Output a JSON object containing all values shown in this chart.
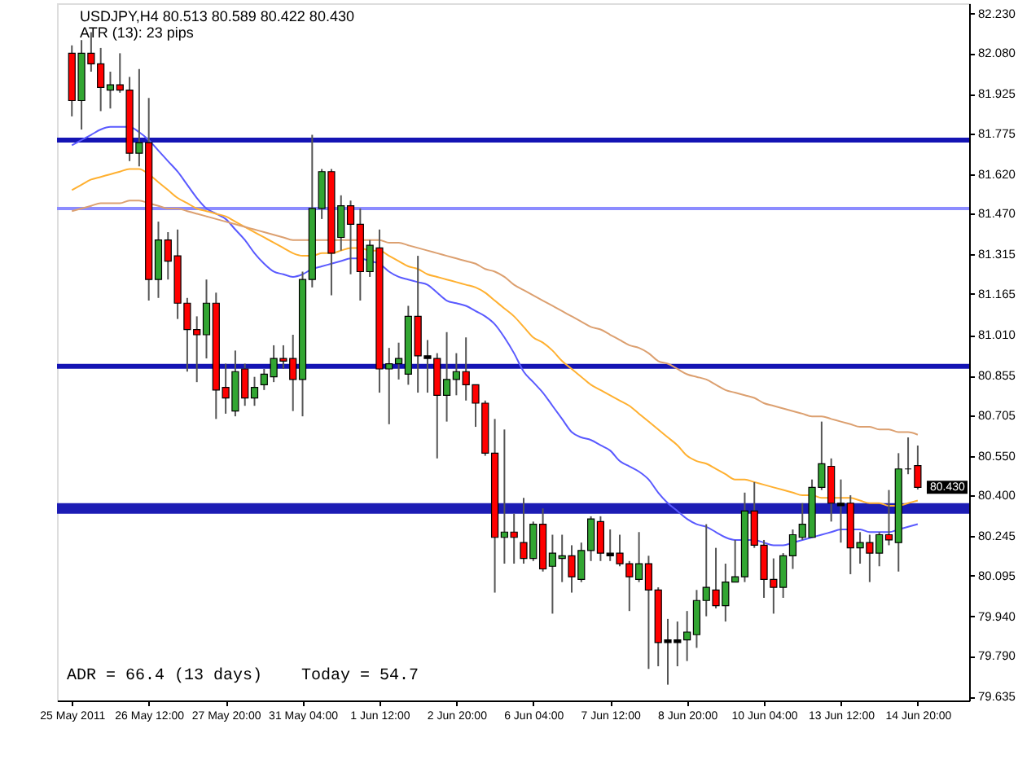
{
  "chart_data": {
    "type": "candlestick",
    "categories": [
      "25 May 2011",
      null,
      null,
      null,
      null,
      null,
      null,
      null,
      "26 May 12:00",
      null,
      null,
      null,
      null,
      null,
      null,
      null,
      "27 May 20:00",
      null,
      null,
      null,
      null,
      null,
      null,
      null,
      "31 May 04:00",
      null,
      null,
      null,
      null,
      null,
      null,
      null,
      "1 Jun 12:00",
      null,
      null,
      null,
      null,
      null,
      null,
      null,
      "2 Jun 20:00",
      null,
      null,
      null,
      null,
      null,
      null,
      null,
      "6 Jun 04:00",
      null,
      null,
      null,
      null,
      null,
      null,
      null,
      "7 Jun 12:00",
      null,
      null,
      null,
      null,
      null,
      null,
      null,
      "8 Jun 20:00",
      null,
      null,
      null,
      null,
      null,
      null,
      null,
      "10 Jun 04:00",
      null,
      null,
      null,
      null,
      null,
      null,
      null,
      "13 Jun 12:00",
      null,
      null,
      null,
      null,
      null,
      null,
      null,
      "14 Jun 20:00"
    ],
    "ohlc": [
      [
        82.08,
        82.11,
        81.84,
        81.9
      ],
      [
        81.9,
        82.13,
        81.79,
        82.08
      ],
      [
        82.08,
        82.16,
        82.01,
        82.04
      ],
      [
        82.04,
        82.1,
        81.86,
        81.95
      ],
      [
        81.94,
        82.01,
        81.87,
        81.96
      ],
      [
        81.96,
        82.08,
        81.93,
        81.94
      ],
      [
        81.94,
        81.99,
        81.67,
        81.7
      ],
      [
        81.7,
        82.02,
        81.65,
        81.74
      ],
      [
        81.74,
        81.91,
        81.14,
        81.22
      ],
      [
        81.22,
        81.44,
        81.15,
        81.37
      ],
      [
        81.37,
        81.4,
        81.22,
        81.29
      ],
      [
        81.31,
        81.41,
        81.07,
        81.13
      ],
      [
        81.13,
        81.15,
        80.87,
        81.03
      ],
      [
        81.03,
        81.08,
        80.83,
        81.01
      ],
      [
        81.01,
        81.22,
        80.92,
        81.13
      ],
      [
        81.13,
        81.17,
        80.69,
        80.8
      ],
      [
        80.81,
        80.9,
        80.71,
        80.77
      ],
      [
        80.72,
        80.95,
        80.7,
        80.87
      ],
      [
        80.88,
        80.9,
        80.74,
        80.77
      ],
      [
        80.77,
        80.85,
        80.74,
        80.81
      ],
      [
        80.82,
        80.88,
        80.8,
        80.86
      ],
      [
        80.85,
        80.97,
        80.83,
        80.92
      ],
      [
        80.92,
        80.97,
        80.88,
        80.91
      ],
      [
        80.92,
        81.01,
        80.72,
        80.84
      ],
      [
        80.84,
        81.25,
        80.7,
        81.22
      ],
      [
        81.22,
        81.77,
        81.19,
        81.49
      ],
      [
        81.49,
        81.64,
        81.45,
        81.63
      ],
      [
        81.63,
        81.64,
        81.16,
        81.32
      ],
      [
        81.38,
        81.54,
        81.33,
        81.5
      ],
      [
        81.5,
        81.52,
        81.24,
        81.43
      ],
      [
        81.43,
        81.49,
        81.14,
        81.25
      ],
      [
        81.25,
        81.37,
        81.23,
        81.35
      ],
      [
        81.34,
        81.41,
        80.79,
        80.88
      ],
      [
        80.88,
        80.96,
        80.67,
        80.9
      ],
      [
        80.9,
        80.98,
        80.84,
        80.92
      ],
      [
        80.86,
        81.12,
        80.82,
        81.08
      ],
      [
        81.08,
        81.31,
        80.79,
        80.93
      ],
      [
        80.93,
        80.99,
        80.79,
        80.92
      ],
      [
        80.92,
        80.94,
        80.54,
        80.78
      ],
      [
        80.78,
        81.02,
        80.68,
        80.84
      ],
      [
        80.84,
        80.94,
        80.78,
        80.87
      ],
      [
        80.87,
        81.0,
        80.76,
        80.82
      ],
      [
        80.82,
        80.82,
        80.66,
        80.75
      ],
      [
        80.75,
        80.76,
        80.55,
        80.56
      ],
      [
        80.56,
        80.69,
        80.03,
        80.24
      ],
      [
        80.24,
        80.65,
        80.14,
        80.26
      ],
      [
        80.26,
        80.33,
        80.14,
        80.24
      ],
      [
        80.22,
        80.39,
        80.14,
        80.16
      ],
      [
        80.16,
        80.3,
        80.15,
        80.29
      ],
      [
        80.29,
        80.35,
        80.11,
        80.12
      ],
      [
        80.13,
        80.25,
        79.95,
        80.18
      ],
      [
        80.16,
        80.25,
        80.07,
        80.17
      ],
      [
        80.17,
        80.21,
        80.03,
        80.09
      ],
      [
        80.08,
        80.22,
        80.07,
        80.19
      ],
      [
        80.19,
        80.32,
        80.15,
        80.31
      ],
      [
        80.3,
        80.32,
        80.15,
        80.18
      ],
      [
        80.18,
        80.27,
        80.15,
        80.17
      ],
      [
        80.18,
        80.25,
        80.13,
        80.14
      ],
      [
        80.14,
        80.15,
        79.96,
        80.09
      ],
      [
        80.08,
        80.26,
        80.07,
        80.14
      ],
      [
        80.14,
        80.17,
        79.74,
        80.04
      ],
      [
        80.04,
        80.05,
        79.75,
        79.84
      ],
      [
        79.85,
        79.93,
        79.68,
        79.84
      ],
      [
        79.84,
        79.92,
        79.75,
        79.85
      ],
      [
        79.85,
        79.96,
        79.77,
        79.88
      ],
      [
        79.87,
        80.04,
        79.82,
        80.0
      ],
      [
        80.0,
        80.29,
        79.94,
        80.05
      ],
      [
        80.04,
        80.2,
        79.97,
        79.98
      ],
      [
        79.98,
        80.14,
        79.92,
        80.07
      ],
      [
        80.07,
        80.23,
        80.07,
        80.09
      ],
      [
        80.09,
        80.41,
        80.07,
        80.34
      ],
      [
        80.34,
        80.45,
        80.2,
        80.21
      ],
      [
        80.21,
        80.23,
        80.01,
        80.08
      ],
      [
        80.08,
        80.16,
        79.95,
        80.05
      ],
      [
        80.05,
        80.18,
        80.01,
        80.17
      ],
      [
        80.17,
        80.27,
        80.12,
        80.25
      ],
      [
        80.24,
        80.37,
        80.23,
        80.29
      ],
      [
        80.24,
        80.46,
        80.24,
        80.43
      ],
      [
        80.43,
        80.68,
        80.42,
        80.52
      ],
      [
        80.51,
        80.54,
        80.3,
        80.37
      ],
      [
        80.37,
        80.46,
        80.22,
        80.36
      ],
      [
        80.37,
        80.4,
        80.1,
        80.2
      ],
      [
        80.2,
        80.26,
        80.14,
        80.22
      ],
      [
        80.22,
        80.25,
        80.07,
        80.18
      ],
      [
        80.18,
        80.26,
        80.13,
        80.25
      ],
      [
        80.25,
        80.42,
        80.21,
        80.23
      ],
      [
        80.22,
        80.56,
        80.11,
        80.5
      ],
      [
        80.5,
        80.62,
        80.48,
        80.5
      ],
      [
        80.513,
        80.589,
        80.422,
        80.43
      ]
    ],
    "colors": [
      "#ff0000",
      "#32a632",
      "#ff0000",
      "#ff0000",
      "#32a632",
      "#ff0000",
      "#ff0000",
      "#32a632",
      "#ff0000",
      "#32a632",
      "#ff0000",
      "#ff0000",
      "#ff0000",
      "#ff0000",
      "#32a632",
      "#ff0000",
      "#ff0000",
      "#32a632",
      "#ff0000",
      "#32a632",
      "#32a632",
      "#32a632",
      "#ff0000",
      "#ff0000",
      "#32a632",
      "#32a632",
      "#32a632",
      "#ff0000",
      "#32a632",
      "#ff0000",
      "#ff0000",
      "#32a632",
      "#ff0000",
      "#32a632",
      "#32a632",
      "#32a632",
      "#ff0000",
      "#000000",
      "#ff0000",
      "#32a632",
      "#32a632",
      "#ff0000",
      "#ff0000",
      "#ff0000",
      "#ff0000",
      "#32a632",
      "#ff0000",
      "#ff0000",
      "#32a632",
      "#ff0000",
      "#32a632",
      "#32a632",
      "#ff0000",
      "#32a632",
      "#32a632",
      "#ff0000",
      "#000000",
      "#ff0000",
      "#ff0000",
      "#32a632",
      "#ff0000",
      "#ff0000",
      "#000000",
      "#000000",
      "#32a632",
      "#32a632",
      "#32a632",
      "#ff0000",
      "#32a632",
      "#32a632",
      "#32a632",
      "#ff0000",
      "#ff0000",
      "#ff0000",
      "#32a632",
      "#32a632",
      "#32a632",
      "#32a632",
      "#32a632",
      "#ff0000",
      "#000000",
      "#ff0000",
      "#32a632",
      "#ff0000",
      "#32a632",
      "#ff0000",
      "#32a632",
      "#000000",
      "#ff0000"
    ],
    "series": [
      {
        "type": "line",
        "color": "#5a5aff",
        "values": [
          81.73,
          81.75,
          81.77,
          81.79,
          81.8,
          81.8,
          81.8,
          81.78,
          81.75,
          81.71,
          81.67,
          81.63,
          81.58,
          81.53,
          81.49,
          81.47,
          81.45,
          81.41,
          81.37,
          81.32,
          81.28,
          81.25,
          81.24,
          81.23,
          81.24,
          81.26,
          81.27,
          81.28,
          81.29,
          81.3,
          81.3,
          81.29,
          81.28,
          81.25,
          81.23,
          81.22,
          81.21,
          81.2,
          81.17,
          81.14,
          81.13,
          81.12,
          81.1,
          81.08,
          81.05,
          81.0,
          80.94,
          80.87,
          80.83,
          80.79,
          80.74,
          80.69,
          80.64,
          80.62,
          80.61,
          80.59,
          80.57,
          80.53,
          80.51,
          80.49,
          80.46,
          80.41,
          80.37,
          80.34,
          80.31,
          80.29,
          80.28,
          80.26,
          80.24,
          80.23,
          80.23,
          80.23,
          80.22,
          80.21,
          80.21,
          80.22,
          80.23,
          80.24,
          80.25,
          80.26,
          80.27,
          80.27,
          80.27,
          80.26,
          80.26,
          80.26,
          80.27,
          80.28,
          80.29
        ]
      },
      {
        "type": "line",
        "color": "#ffb030",
        "values": [
          81.56,
          81.58,
          81.6,
          81.61,
          81.62,
          81.63,
          81.64,
          81.64,
          81.62,
          81.59,
          81.56,
          81.53,
          81.51,
          81.49,
          81.48,
          81.47,
          81.46,
          81.44,
          81.42,
          81.4,
          81.38,
          81.36,
          81.34,
          81.32,
          81.31,
          81.31,
          81.32,
          81.32,
          81.33,
          81.34,
          81.34,
          81.33,
          81.33,
          81.31,
          81.29,
          81.27,
          81.26,
          81.24,
          81.23,
          81.22,
          81.21,
          81.2,
          81.19,
          81.17,
          81.14,
          81.11,
          81.08,
          81.04,
          81.0,
          80.98,
          80.95,
          80.91,
          80.88,
          80.85,
          80.82,
          80.8,
          80.78,
          80.76,
          80.74,
          80.71,
          80.68,
          80.65,
          80.62,
          80.59,
          80.55,
          80.53,
          80.52,
          80.5,
          80.48,
          80.46,
          80.46,
          80.45,
          80.44,
          80.43,
          80.42,
          80.41,
          80.4,
          80.4,
          80.39,
          80.39,
          80.39,
          80.39,
          80.38,
          80.37,
          80.37,
          80.36,
          80.36,
          80.37,
          80.38
        ]
      },
      {
        "type": "line",
        "color": "#dca070",
        "values": [
          81.48,
          81.49,
          81.5,
          81.51,
          81.51,
          81.51,
          81.52,
          81.52,
          81.51,
          81.5,
          81.49,
          81.49,
          81.48,
          81.47,
          81.46,
          81.45,
          81.44,
          81.43,
          81.42,
          81.41,
          81.4,
          81.39,
          81.38,
          81.37,
          81.37,
          81.37,
          81.37,
          81.37,
          81.37,
          81.37,
          81.37,
          81.37,
          81.37,
          81.36,
          81.36,
          81.35,
          81.34,
          81.33,
          81.32,
          81.31,
          81.3,
          81.29,
          81.28,
          81.26,
          81.25,
          81.23,
          81.2,
          81.18,
          81.16,
          81.14,
          81.12,
          81.1,
          81.08,
          81.06,
          81.04,
          81.03,
          81.01,
          80.99,
          80.97,
          80.96,
          80.94,
          80.91,
          80.9,
          80.88,
          80.86,
          80.85,
          80.84,
          80.82,
          80.8,
          80.79,
          80.78,
          80.77,
          80.75,
          80.74,
          80.73,
          80.72,
          80.71,
          80.7,
          80.7,
          80.69,
          80.68,
          80.67,
          80.66,
          80.66,
          80.65,
          80.65,
          80.64,
          80.64,
          80.63
        ]
      }
    ],
    "ref_lines": [
      {
        "axis": "y",
        "value": 81.75,
        "color": "#1414b4"
      },
      {
        "axis": "y",
        "value": 81.49,
        "color": "#8c8cff"
      },
      {
        "axis": "y",
        "value": 80.89,
        "color": "#1414b4"
      }
    ],
    "bands": [
      {
        "axis": "y",
        "from": 80.33,
        "to": 80.37,
        "color": "#1c1cb4"
      }
    ],
    "ylim": [
      79.62,
      82.27
    ],
    "yticks": [
      {
        "value": 82.23,
        "label": "82.230"
      },
      {
        "value": 82.08,
        "label": "82.080"
      },
      {
        "value": 81.925,
        "label": "81.925"
      },
      {
        "value": 81.775,
        "label": "81.775"
      },
      {
        "value": 81.62,
        "label": "81.620"
      },
      {
        "value": 81.47,
        "label": "81.470"
      },
      {
        "value": 81.315,
        "label": "81.315"
      },
      {
        "value": 81.165,
        "label": "81.165"
      },
      {
        "value": 81.01,
        "label": "81.010"
      },
      {
        "value": 80.855,
        "label": "80.855"
      },
      {
        "value": 80.705,
        "label": "80.705"
      },
      {
        "value": 80.55,
        "label": "80.550"
      },
      {
        "value": 80.4,
        "label": "80.400"
      },
      {
        "value": 80.245,
        "label": "80.245"
      },
      {
        "value": 80.095,
        "label": "80.095"
      },
      {
        "value": 79.94,
        "label": "79.940"
      },
      {
        "value": 79.79,
        "label": "79.790"
      },
      {
        "value": 79.635,
        "label": "79.635"
      }
    ],
    "annotations": [
      "USDJPY,H4  80.513 80.589 80.422 80.430",
      "ATR (13): 23 pips",
      "ADR = 66.4  (13 days)",
      "Today = 54.7",
      "80.430"
    ],
    "grid": false
  }
}
